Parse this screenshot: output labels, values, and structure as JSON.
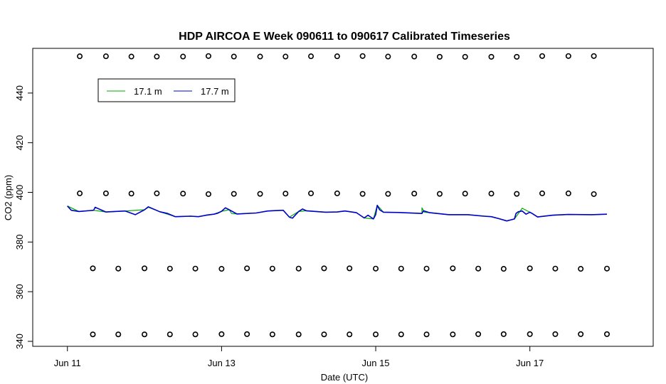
{
  "chart_data": {
    "type": "line",
    "title": "HDP AIRCOA E  Week 090611 to 090617  Calibrated Timeseries",
    "xlabel": "Date (UTC)",
    "ylabel": "CO2 (ppm)",
    "x_unit": "days (Jun 11 = 0)",
    "xlim": [
      -0.45,
      7.6
    ],
    "ylim": [
      338,
      458
    ],
    "x_ticks": [
      {
        "value": 0,
        "label": "Jun 11"
      },
      {
        "value": 2,
        "label": "Jun 13"
      },
      {
        "value": 4,
        "label": "Jun 15"
      },
      {
        "value": 6,
        "label": "Jun 17"
      }
    ],
    "y_ticks": [
      {
        "value": 340,
        "label": "340"
      },
      {
        "value": 360,
        "label": "360"
      },
      {
        "value": 380,
        "label": "380"
      },
      {
        "value": 400,
        "label": "400"
      },
      {
        "value": 420,
        "label": "420"
      },
      {
        "value": 440,
        "label": "440"
      }
    ],
    "legend": {
      "placement": "top-left",
      "entries": [
        {
          "label": "17.1 m",
          "color": "#00aa00"
        },
        {
          "label": "17.7 m",
          "color": "#0000cc"
        }
      ]
    },
    "grid": false,
    "series": [
      {
        "name": "17.1 m",
        "color": "#00aa00",
        "x": [
          0.0,
          0.15,
          0.34,
          0.5,
          0.75,
          1.0,
          1.05,
          1.2,
          1.4,
          1.6,
          1.7,
          1.9,
          2.0,
          2.1,
          2.13,
          2.2,
          2.45,
          2.6,
          2.8,
          2.88,
          3.0,
          3.1,
          3.35,
          3.5,
          3.6,
          3.75,
          3.85,
          3.97,
          4.02,
          4.1,
          4.3,
          4.6,
          4.6,
          4.63,
          4.7,
          4.95,
          5.2,
          5.5,
          5.7,
          5.8,
          5.9,
          6.0,
          6.03,
          6.1,
          6.3,
          6.5,
          6.8,
          7.0
        ],
        "y": [
          394.5,
          392.3,
          392.8,
          392.1,
          392.5,
          393.0,
          394.0,
          392.2,
          390.2,
          390.4,
          390.2,
          391.2,
          392.4,
          393.0,
          391.5,
          391.3,
          391.7,
          392.5,
          392.8,
          390.0,
          392.3,
          392.6,
          392.0,
          392.1,
          392.5,
          391.8,
          389.7,
          389.3,
          394.8,
          392.0,
          391.9,
          391.5,
          393.8,
          392.0,
          391.8,
          391.0,
          391.0,
          390.2,
          388.5,
          389.3,
          393.6,
          392.0,
          391.5,
          390.1,
          390.8,
          391.1,
          391.0,
          391.2
        ]
      },
      {
        "name": "17.7 m",
        "color": "#0000cc",
        "x": [
          0.0,
          0.05,
          0.15,
          0.34,
          0.36,
          0.5,
          0.75,
          0.88,
          1.0,
          1.05,
          1.2,
          1.3,
          1.4,
          1.6,
          1.7,
          1.8,
          1.9,
          1.95,
          2.0,
          2.05,
          2.1,
          2.2,
          2.45,
          2.6,
          2.8,
          2.88,
          2.92,
          3.0,
          3.05,
          3.1,
          3.35,
          3.5,
          3.6,
          3.75,
          3.85,
          3.9,
          3.97,
          4.0,
          4.02,
          4.05,
          4.1,
          4.3,
          4.6,
          4.62,
          4.7,
          4.95,
          5.2,
          5.4,
          5.5,
          5.6,
          5.7,
          5.8,
          5.82,
          5.85,
          5.9,
          5.95,
          6.0,
          6.03,
          6.1,
          6.3,
          6.5,
          6.8,
          7.0
        ],
        "y": [
          394.5,
          392.8,
          392.3,
          392.8,
          394.0,
          392.1,
          392.5,
          391.0,
          393.0,
          394.2,
          392.2,
          391.5,
          390.2,
          390.4,
          390.2,
          390.8,
          391.2,
          391.6,
          392.4,
          393.8,
          393.0,
          391.3,
          391.7,
          392.5,
          392.8,
          390.0,
          389.6,
          392.3,
          393.3,
          392.6,
          392.0,
          392.1,
          392.5,
          391.8,
          389.7,
          390.8,
          389.3,
          391.0,
          394.8,
          393.0,
          392.0,
          391.9,
          391.5,
          392.6,
          391.8,
          391.0,
          391.0,
          390.4,
          390.2,
          389.4,
          388.5,
          389.3,
          391.5,
          392.2,
          392.5,
          391.2,
          392.0,
          391.5,
          390.1,
          390.8,
          391.1,
          391.0,
          391.2
        ]
      },
      {
        "name": "",
        "type": "scatter",
        "marker": "open-circle",
        "color": "#000000",
        "x": [
          0.16,
          0.5,
          0.83,
          1.16,
          1.5,
          1.83,
          2.16,
          2.5,
          2.83,
          3.16,
          3.5,
          3.83,
          4.16,
          4.5,
          4.83,
          5.16,
          5.5,
          5.83,
          6.16,
          6.5,
          6.83,
          0.16,
          0.5,
          0.83,
          1.16,
          1.5,
          1.83,
          2.16,
          2.5,
          2.83,
          3.16,
          3.5,
          3.83,
          4.16,
          4.5,
          4.83,
          5.16,
          5.5,
          5.83,
          6.16,
          6.5,
          6.83,
          0.33,
          0.66,
          1.0,
          1.33,
          1.66,
          2.0,
          2.33,
          2.66,
          3.0,
          3.33,
          3.66,
          4.0,
          4.33,
          4.66,
          5.0,
          5.33,
          5.66,
          6.0,
          6.33,
          6.66,
          7.0,
          0.33,
          0.66,
          1.0,
          1.33,
          1.66,
          2.0,
          2.33,
          2.66,
          3.0,
          3.33,
          3.66,
          4.0,
          4.33,
          4.66,
          5.0,
          5.33,
          5.66,
          6.0,
          6.33,
          6.66,
          7.0
        ],
        "y": [
          454.8,
          454.8,
          454.7,
          454.7,
          454.7,
          454.9,
          454.7,
          454.7,
          454.7,
          454.8,
          454.8,
          454.9,
          454.7,
          454.7,
          454.6,
          454.6,
          454.6,
          454.6,
          454.9,
          454.9,
          454.9,
          399.6,
          399.6,
          399.5,
          399.6,
          399.5,
          399.3,
          399.4,
          399.4,
          399.5,
          399.6,
          399.6,
          399.4,
          399.4,
          399.5,
          399.4,
          399.5,
          399.5,
          399.4,
          399.6,
          399.6,
          399.3,
          369.4,
          369.3,
          369.4,
          369.3,
          369.3,
          369.2,
          369.4,
          369.3,
          369.3,
          369.4,
          369.4,
          369.3,
          369.3,
          369.3,
          369.4,
          369.3,
          369.2,
          369.4,
          369.3,
          369.2,
          369.3,
          342.8,
          342.8,
          342.8,
          342.8,
          342.8,
          342.9,
          342.9,
          342.8,
          342.8,
          342.8,
          342.8,
          342.8,
          342.8,
          342.8,
          342.8,
          342.9,
          342.9,
          342.9,
          342.9,
          342.9,
          342.9
        ]
      }
    ]
  }
}
